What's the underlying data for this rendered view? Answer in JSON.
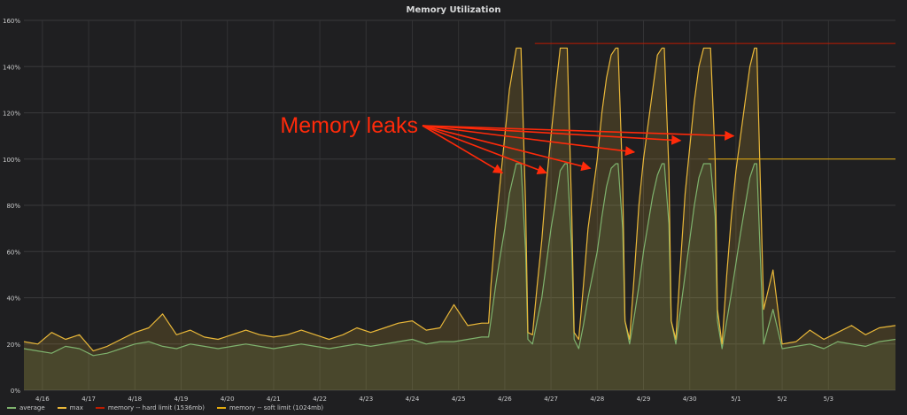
{
  "chart_data": {
    "type": "line",
    "title": "Memory Utilization",
    "xlabel": "",
    "ylabel": "",
    "ylim": [
      0,
      160
    ],
    "yticks": [
      0,
      20,
      40,
      60,
      80,
      100,
      120,
      140,
      160
    ],
    "ytick_labels": [
      "0%",
      "20%",
      "40%",
      "60%",
      "80%",
      "100%",
      "120%",
      "140%",
      "160%"
    ],
    "xlim": [
      15.6,
      34.45
    ],
    "xticks": [
      16,
      17,
      18,
      19,
      20,
      21,
      22,
      23,
      24,
      25,
      26,
      27,
      28,
      29,
      30,
      31,
      32,
      33
    ],
    "xtick_labels": [
      "4/16",
      "4/17",
      "4/18",
      "4/19",
      "4/20",
      "4/21",
      "4/22",
      "4/23",
      "4/24",
      "4/25",
      "4/26",
      "4/27",
      "4/28",
      "4/29",
      "4/30",
      "5/1",
      "5/2",
      "5/3"
    ],
    "grid": true,
    "legend_position": "bottom-left",
    "series": [
      {
        "name": "average",
        "color": "#7eb26d",
        "x": [
          15.6,
          15.9,
          16.2,
          16.5,
          16.8,
          17.1,
          17.4,
          17.7,
          18.0,
          18.3,
          18.6,
          18.9,
          19.2,
          19.5,
          19.8,
          20.1,
          20.4,
          20.7,
          21.0,
          21.3,
          21.6,
          21.9,
          22.2,
          22.5,
          22.8,
          23.1,
          23.4,
          23.7,
          24.0,
          24.3,
          24.6,
          24.9,
          25.2,
          25.5,
          25.65,
          25.7,
          25.8,
          25.9,
          26.0,
          26.1,
          26.25,
          26.3,
          26.35,
          26.45,
          26.5,
          26.6,
          26.7,
          26.8,
          26.9,
          27.0,
          27.1,
          27.2,
          27.3,
          27.35,
          27.45,
          27.5,
          27.6,
          27.7,
          27.8,
          27.9,
          28.0,
          28.1,
          28.2,
          28.3,
          28.4,
          28.45,
          28.55,
          28.6,
          28.7,
          28.8,
          28.9,
          29.0,
          29.1,
          29.2,
          29.3,
          29.4,
          29.45,
          29.55,
          29.6,
          29.7,
          29.8,
          29.9,
          30.0,
          30.1,
          30.2,
          30.3,
          30.4,
          30.45,
          30.55,
          30.6,
          30.7,
          30.8,
          30.9,
          31.0,
          31.1,
          31.2,
          31.3,
          31.4,
          31.45,
          31.6,
          31.8,
          32.0,
          32.3,
          32.6,
          32.9,
          33.2,
          33.5,
          33.8,
          34.1,
          34.45
        ],
        "values": [
          18,
          17,
          16,
          19,
          18,
          15,
          16,
          18,
          20,
          21,
          19,
          18,
          20,
          19,
          18,
          19,
          20,
          19,
          18,
          19,
          20,
          19,
          18,
          19,
          20,
          19,
          20,
          21,
          22,
          20,
          21,
          21,
          22,
          23,
          23,
          30,
          45,
          58,
          70,
          85,
          98,
          98,
          98,
          60,
          22,
          20,
          30,
          40,
          55,
          70,
          82,
          95,
          98,
          98,
          60,
          22,
          18,
          28,
          40,
          50,
          60,
          75,
          88,
          96,
          98,
          98,
          70,
          30,
          20,
          32,
          45,
          60,
          72,
          84,
          93,
          98,
          98,
          72,
          30,
          20,
          35,
          50,
          65,
          80,
          92,
          98,
          98,
          98,
          75,
          30,
          18,
          30,
          42,
          55,
          68,
          80,
          92,
          98,
          98,
          20,
          35,
          18,
          19,
          20,
          18,
          21,
          20,
          19,
          21,
          22
        ]
      },
      {
        "name": "max",
        "color": "#eab839",
        "x": [
          15.6,
          15.9,
          16.2,
          16.5,
          16.8,
          17.1,
          17.4,
          17.7,
          18.0,
          18.3,
          18.6,
          18.9,
          19.2,
          19.5,
          19.8,
          20.1,
          20.4,
          20.7,
          21.0,
          21.3,
          21.6,
          21.9,
          22.2,
          22.5,
          22.8,
          23.1,
          23.4,
          23.7,
          24.0,
          24.3,
          24.6,
          24.9,
          25.2,
          25.5,
          25.65,
          25.7,
          25.8,
          25.9,
          26.0,
          26.1,
          26.25,
          26.3,
          26.35,
          26.45,
          26.5,
          26.6,
          26.7,
          26.8,
          26.9,
          27.0,
          27.1,
          27.2,
          27.3,
          27.35,
          27.45,
          27.5,
          27.6,
          27.7,
          27.8,
          27.9,
          28.0,
          28.1,
          28.2,
          28.3,
          28.4,
          28.45,
          28.55,
          28.6,
          28.7,
          28.8,
          28.9,
          29.0,
          29.1,
          29.2,
          29.3,
          29.4,
          29.45,
          29.55,
          29.6,
          29.7,
          29.8,
          29.9,
          30.0,
          30.1,
          30.2,
          30.3,
          30.4,
          30.45,
          30.55,
          30.6,
          30.7,
          30.8,
          30.9,
          31.0,
          31.1,
          31.2,
          31.3,
          31.4,
          31.45,
          31.6,
          31.8,
          32.0,
          32.3,
          32.6,
          32.9,
          33.2,
          33.5,
          33.8,
          34.1,
          34.45
        ],
        "values": [
          21,
          20,
          25,
          22,
          24,
          17,
          19,
          22,
          25,
          27,
          33,
          24,
          26,
          23,
          22,
          24,
          26,
          24,
          23,
          24,
          26,
          24,
          22,
          24,
          27,
          25,
          27,
          29,
          30,
          26,
          27,
          37,
          28,
          29,
          29,
          45,
          70,
          90,
          110,
          130,
          148,
          148,
          148,
          80,
          25,
          24,
          45,
          65,
          90,
          110,
          130,
          148,
          148,
          148,
          75,
          25,
          22,
          45,
          70,
          85,
          100,
          120,
          135,
          145,
          148,
          148,
          90,
          30,
          22,
          50,
          80,
          100,
          115,
          130,
          145,
          148,
          148,
          95,
          30,
          22,
          55,
          85,
          105,
          125,
          140,
          148,
          148,
          148,
          100,
          35,
          20,
          50,
          75,
          95,
          110,
          125,
          140,
          148,
          148,
          35,
          52,
          20,
          21,
          26,
          22,
          25,
          28,
          24,
          27,
          28
        ]
      },
      {
        "name": "memory -- hard limit (1536mb)",
        "color": "#bf1b00",
        "x": [
          26.65,
          34.45
        ],
        "values": [
          150,
          150
        ]
      },
      {
        "name": "memory -- soft limit (1024mb)",
        "color": "#e5ac0e",
        "x": [
          30.4,
          34.45
        ],
        "values": [
          100,
          100
        ]
      }
    ],
    "annotations": [
      {
        "text": "Memory leaks",
        "color": "#ff2a0a",
        "arrows_to": [
          {
            "x": 25.95,
            "y": 94
          },
          {
            "x": 26.9,
            "y": 94
          },
          {
            "x": 27.85,
            "y": 96
          },
          {
            "x": 28.8,
            "y": 103
          },
          {
            "x": 29.8,
            "y": 108
          },
          {
            "x": 30.95,
            "y": 110
          }
        ]
      }
    ]
  }
}
